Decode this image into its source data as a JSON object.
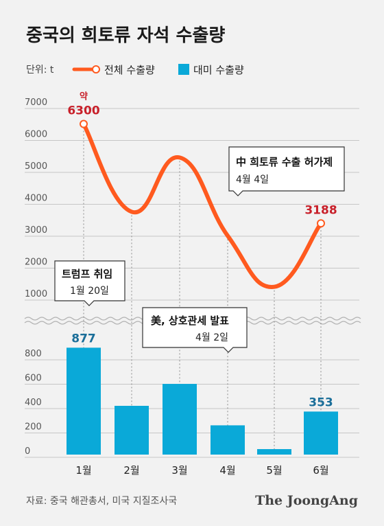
{
  "title": "중국의 희토류 자석 수출량",
  "unit_label": "단위: t",
  "source": "자료: 중국 해관총서, 미국 지질조사국",
  "brand": "The JoongAng",
  "colors": {
    "line": "#ff5a1f",
    "bar": "#0aa9d8",
    "red_label": "#c8202a",
    "blue_label": "#1a6e99"
  },
  "chart_data": [
    {
      "type": "line",
      "series": [
        {
          "name": "전체 수출량",
          "values": [
            6300,
            3550,
            5250,
            2800,
            1200,
            3188
          ]
        }
      ],
      "categories": [
        "1월",
        "2월",
        "3월",
        "4월",
        "5월",
        "6월"
      ],
      "yticks": [
        "1000",
        "2000",
        "3000",
        "4000",
        "5000",
        "6000",
        "7000"
      ],
      "ylim": [
        700,
        7000
      ],
      "data_labels": [
        {
          "index": 0,
          "text": "6300",
          "prefix": "약"
        },
        {
          "index": 5,
          "text": "3188"
        }
      ],
      "grid": true
    },
    {
      "type": "bar",
      "series": [
        {
          "name": "대미 수출량",
          "values": [
            877,
            400,
            580,
            240,
            45,
            353
          ]
        }
      ],
      "categories": [
        "1월",
        "2월",
        "3월",
        "4월",
        "5월",
        "6월"
      ],
      "yticks": [
        "0",
        "200",
        "400",
        "600",
        "800"
      ],
      "ylim": [
        0,
        1000
      ],
      "data_labels": [
        {
          "index": 0,
          "text": "877"
        },
        {
          "index": 5,
          "text": "353"
        }
      ],
      "grid": true
    }
  ],
  "annotations": [
    {
      "title": "中 희토류 수출 허가제",
      "date": "4월 4일"
    },
    {
      "title": "트럼프 취임",
      "date": "1월 20일"
    },
    {
      "title": "美, 상호관세 발표",
      "date": "4월 2일"
    }
  ]
}
